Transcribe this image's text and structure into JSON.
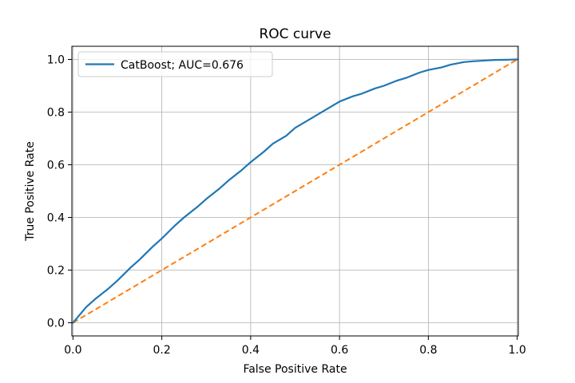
{
  "chart_data": {
    "type": "line",
    "title": "ROC curve",
    "xlabel": "False Positive Rate",
    "ylabel": "True Positive Rate",
    "xlim": [
      -0.0025,
      1.0025
    ],
    "ylim": [
      -0.05,
      1.05
    ],
    "xticks": [
      0.0,
      0.2,
      0.4,
      0.6,
      0.8,
      1.0
    ],
    "xtick_labels": [
      "0.0",
      "0.2",
      "0.4",
      "0.6",
      "0.8",
      "1.0"
    ],
    "yticks": [
      0.0,
      0.2,
      0.4,
      0.6,
      0.8,
      1.0
    ],
    "ytick_labels": [
      "0.0",
      "0.2",
      "0.4",
      "0.6",
      "0.8",
      "1.0"
    ],
    "grid": true,
    "legend_position": "upper-left",
    "series": [
      {
        "name": "CatBoost; AUC=0.676",
        "color": "#1f77b4",
        "style": "solid",
        "x": [
          0.0,
          0.01,
          0.02,
          0.03,
          0.05,
          0.08,
          0.1,
          0.13,
          0.15,
          0.18,
          0.2,
          0.23,
          0.25,
          0.28,
          0.3,
          0.33,
          0.35,
          0.38,
          0.4,
          0.43,
          0.45,
          0.48,
          0.5,
          0.53,
          0.55,
          0.58,
          0.6,
          0.63,
          0.65,
          0.68,
          0.7,
          0.73,
          0.75,
          0.78,
          0.8,
          0.83,
          0.85,
          0.88,
          0.9,
          0.93,
          0.95,
          0.98,
          1.0
        ],
        "y": [
          0.0,
          0.02,
          0.04,
          0.06,
          0.09,
          0.13,
          0.16,
          0.21,
          0.24,
          0.29,
          0.32,
          0.37,
          0.4,
          0.44,
          0.47,
          0.51,
          0.54,
          0.58,
          0.61,
          0.65,
          0.68,
          0.71,
          0.74,
          0.77,
          0.79,
          0.82,
          0.84,
          0.86,
          0.87,
          0.89,
          0.9,
          0.92,
          0.93,
          0.95,
          0.96,
          0.97,
          0.98,
          0.99,
          0.993,
          0.996,
          0.998,
          0.999,
          1.0
        ]
      },
      {
        "name": "",
        "color": "#ff7f0e",
        "style": "dashed",
        "x": [
          0.0,
          1.0
        ],
        "y": [
          0.0,
          1.0
        ]
      }
    ]
  }
}
